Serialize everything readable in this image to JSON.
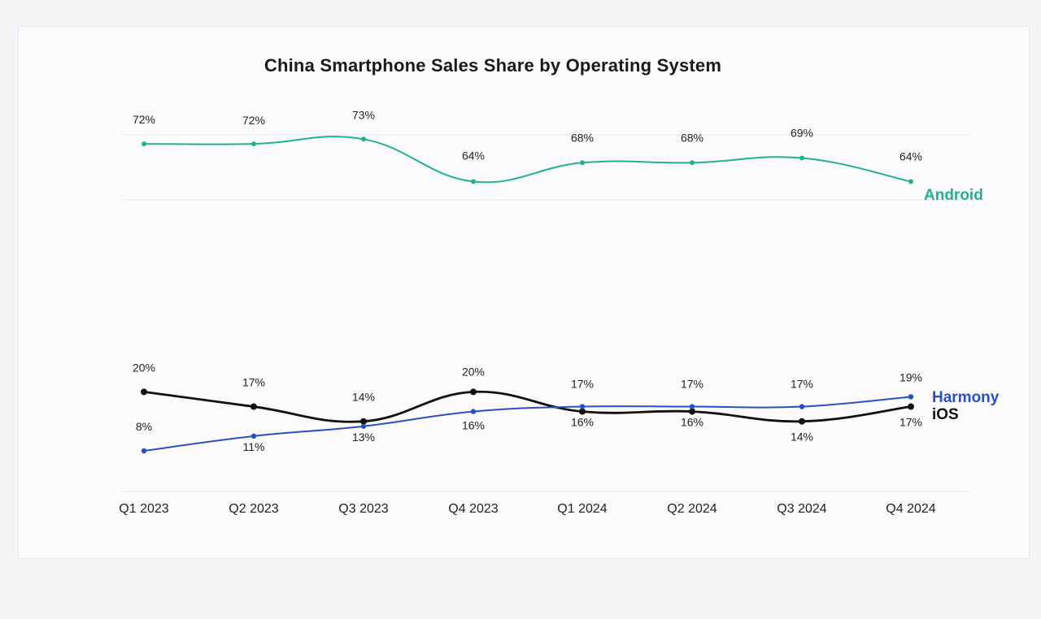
{
  "chart_data": {
    "type": "line",
    "title": "China Smartphone Sales Share by Operating System",
    "categories": [
      "Q1 2023",
      "Q2 2023",
      "Q3 2023",
      "Q4 2023",
      "Q1 2024",
      "Q2 2024",
      "Q3 2024",
      "Q4 2024"
    ],
    "series": [
      {
        "name": "Android",
        "color": "#1fb38b",
        "values": [
          72,
          72,
          73,
          64,
          68,
          68,
          69,
          64
        ],
        "labels": [
          "72%",
          "72%",
          "73%",
          "64%",
          "68%",
          "68%",
          "69%",
          "64%"
        ]
      },
      {
        "name": "iOS",
        "color": "#111111",
        "values": [
          20,
          17,
          14,
          20,
          16,
          16,
          14,
          17
        ],
        "labels": [
          "20%",
          "17%",
          "14%",
          "20%",
          "16%",
          "16%",
          "14%",
          "17%"
        ]
      },
      {
        "name": "Harmony",
        "color": "#2a4fc0",
        "values": [
          8,
          11,
          13,
          16,
          17,
          17,
          17,
          19
        ],
        "labels": [
          "8%",
          "11%",
          "13%",
          "16%",
          "17%",
          "17%",
          "17%",
          "19%"
        ]
      }
    ],
    "xlabel": "",
    "ylabel": "",
    "legend": "inline-right",
    "grid": true
  }
}
